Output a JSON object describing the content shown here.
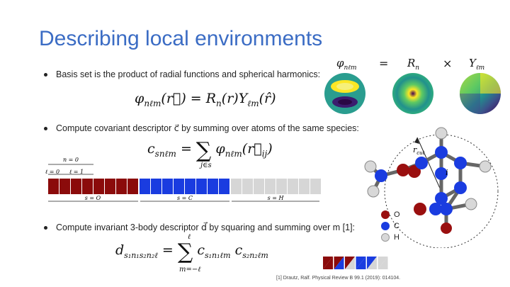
{
  "slide": {
    "title": "Describing local environments",
    "bullets": [
      "Basis set is the product of radial functions and spherical harmonics:",
      "Compute covariant descriptor c⃗ by summing over atoms of the same species:",
      "Compute invariant 3-body descriptor d⃗ by squaring and summing over m [1]:"
    ],
    "equations": {
      "basis": "φnℓm(r⃗) = Rn(r)Yℓm(r̂)",
      "covariant": "csnℓm = Σj∈s φnℓm(r⃗ij)",
      "invariant": "ds1n1s2n2ℓ = Σm=−ℓ..ℓ cs1n1ℓm cs2n2ℓm"
    },
    "basis_header": {
      "phi": "φnℓm",
      "eq": "=",
      "R": "Rn",
      "times": "×",
      "Y": "Yℓm"
    },
    "bar": {
      "n_label": "n = 0",
      "l0_label": "ℓ = 0",
      "l1_label": "ℓ = 1",
      "species": [
        "s = O",
        "s = C",
        "s = H"
      ],
      "colors": {
        "O": "#8b0b0b",
        "C": "#1a3ce0",
        "H": "#d6d6d6"
      },
      "cells_per_species": [
        8,
        8,
        8
      ]
    },
    "molecule": {
      "center_label": "i",
      "cutoff_label": "rcut"
    },
    "legend": [
      {
        "symbol": "O",
        "color": "#9a0f0f"
      },
      {
        "symbol": "C",
        "color": "#1a3ce0"
      },
      {
        "symbol": "H",
        "color": "#d8d8d8"
      }
    ],
    "reference": "[1] Drautz, Ralf. Physical Review B 99.1 (2019): 014104."
  }
}
